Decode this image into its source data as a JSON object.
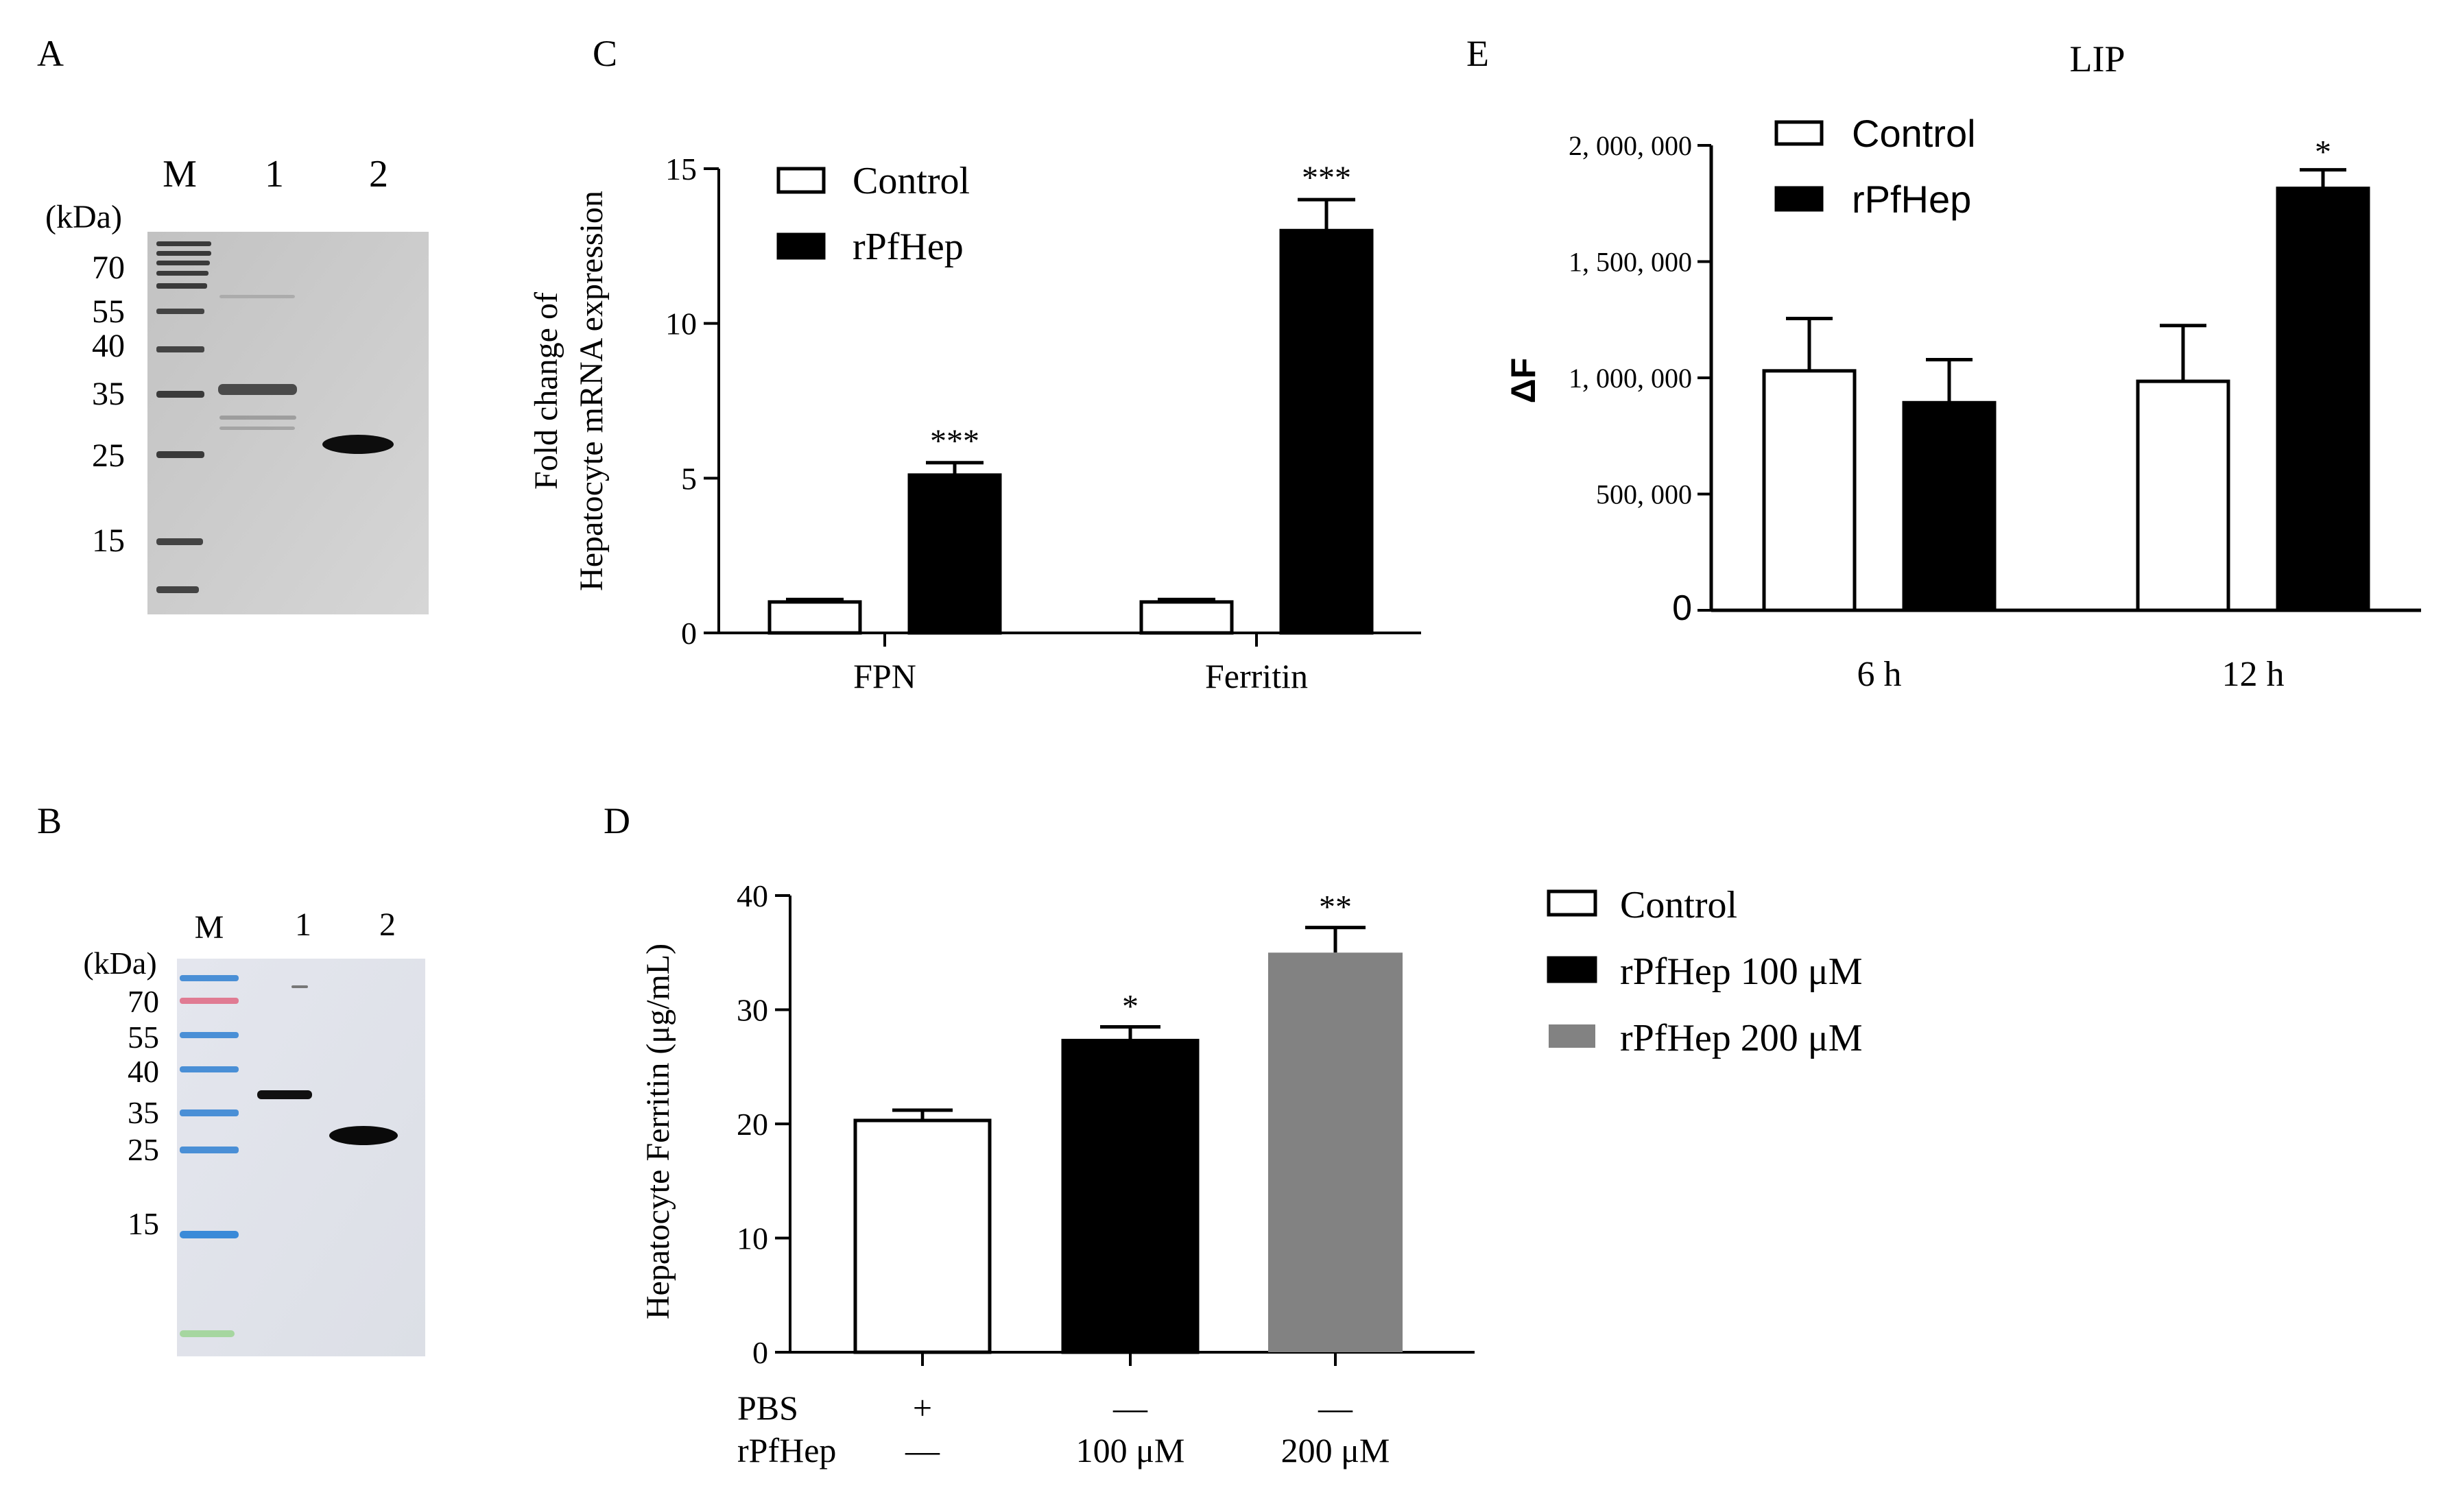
{
  "panel_letters": {
    "a": "A",
    "b": "B",
    "c": "C",
    "d": "D",
    "e": "E"
  },
  "colors": {
    "control": "#ffffff",
    "treated": "#000000",
    "gray": "#828282",
    "stroke": "#000000"
  },
  "gel_a": {
    "lanes": [
      "M",
      "1",
      "2"
    ],
    "unit": "(kDa)",
    "markers": [
      "70",
      "55",
      "40",
      "35",
      "25",
      "15"
    ]
  },
  "blot_b": {
    "lanes": [
      "M",
      "1",
      "2"
    ],
    "unit": "(kDa)",
    "markers": [
      "70",
      "55",
      "40",
      "35",
      "25",
      "15"
    ]
  },
  "chart_data": [
    {
      "id": "C",
      "type": "bar",
      "title": "",
      "ylabel": [
        "Fold change of",
        "Hepatocyte mRNA expression"
      ],
      "xlabel": "",
      "categories": [
        "FPN",
        "Ferritin"
      ],
      "ylim": [
        0,
        15
      ],
      "yticks": [
        "0",
        "5",
        "10",
        "15"
      ],
      "legend_position": "top-left",
      "series": [
        {
          "name": "Control",
          "values": [
            1.0,
            1.0
          ],
          "errors": [
            0.08,
            0.08
          ],
          "sig": [
            "",
            ""
          ]
        },
        {
          "name": "rPfHep",
          "values": [
            5.1,
            13.0
          ],
          "errors": [
            0.4,
            1.0
          ],
          "sig": [
            "***",
            "***"
          ]
        }
      ]
    },
    {
      "id": "D",
      "type": "bar",
      "title": "",
      "ylabel": "Hepatocyte Ferritin (μg/mL)",
      "xlabel": "",
      "categories": [
        "Control",
        "rPfHep 100 μM",
        "rPfHep 200 μM"
      ],
      "ylim": [
        0,
        40
      ],
      "yticks": [
        "0",
        "10",
        "20",
        "30",
        "40"
      ],
      "values": [
        20.3,
        27.3,
        35.0
      ],
      "errors": [
        0.9,
        1.2,
        2.2
      ],
      "sig": [
        "",
        "*",
        "**"
      ],
      "legend": [
        {
          "label": "Control",
          "color": "#ffffff"
        },
        {
          "label": "rPfHep  100 μM",
          "color": "#000000"
        },
        {
          "label": "rPfHep   200 μM",
          "color": "#828282"
        }
      ],
      "legend_position": "right",
      "condition_rows": [
        {
          "label": "PBS",
          "values": [
            "+",
            "—",
            "—"
          ]
        },
        {
          "label": "rPfHep",
          "values": [
            "—",
            "100 μM",
            "200 μM"
          ]
        }
      ]
    },
    {
      "id": "E",
      "type": "bar",
      "title": "LIP",
      "ylabel": "ΔF",
      "xlabel": "",
      "categories": [
        "6 h",
        "12 h"
      ],
      "ylim": [
        0,
        2000000
      ],
      "yticks": [
        "0",
        "500, 000",
        "1, 000, 000",
        "1, 500, 000",
        "2, 000, 000"
      ],
      "legend_position": "top-left",
      "series": [
        {
          "name": "Control",
          "values": [
            1030000,
            985000
          ],
          "errors": [
            225000,
            240000
          ],
          "sig": [
            "",
            ""
          ]
        },
        {
          "name": "rPfHep",
          "values": [
            893000,
            1815000
          ],
          "errors": [
            185000,
            80000
          ],
          "sig": [
            "",
            "*"
          ]
        }
      ]
    }
  ]
}
